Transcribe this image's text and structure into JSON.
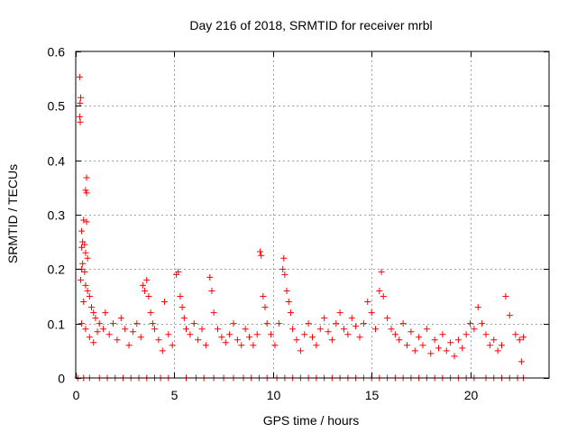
{
  "chart_data": {
    "type": "scatter",
    "title": "Day 216 of 2018, SRMTID for receiver mrbl",
    "xlabel": "GPS time / hours",
    "ylabel": "SRMTID / TECUs",
    "xlim": [
      0,
      24
    ],
    "ylim": [
      0,
      0.6
    ],
    "xticks": [
      0,
      5,
      10,
      15,
      20
    ],
    "xtick_labels": [
      "0",
      "5",
      "10",
      "15",
      "20"
    ],
    "yticks": [
      0,
      0.1,
      0.2,
      0.3,
      0.4,
      0.5,
      0.6
    ],
    "ytick_labels": [
      "0",
      "0.1",
      "0.2",
      "0.3",
      "0.4",
      "0.5",
      "0.6"
    ],
    "grid": true,
    "marker": "+",
    "color": "#ff0000",
    "series": [
      {
        "name": "SRMTID",
        "points": [
          [
            0.2,
            0.553
          ],
          [
            0.25,
            0.515
          ],
          [
            0.22,
            0.505
          ],
          [
            0.2,
            0.48
          ],
          [
            0.23,
            0.47
          ],
          [
            0.55,
            0.368
          ],
          [
            0.5,
            0.345
          ],
          [
            0.55,
            0.34
          ],
          [
            0.4,
            0.29
          ],
          [
            0.55,
            0.287
          ],
          [
            0.3,
            0.27
          ],
          [
            0.35,
            0.25
          ],
          [
            0.45,
            0.245
          ],
          [
            0.3,
            0.24
          ],
          [
            0.5,
            0.23
          ],
          [
            0.6,
            0.22
          ],
          [
            0.35,
            0.21
          ],
          [
            0.3,
            0.2
          ],
          [
            0.45,
            0.195
          ],
          [
            0.25,
            0.18
          ],
          [
            0.5,
            0.17
          ],
          [
            0.6,
            0.16
          ],
          [
            0.7,
            0.15
          ],
          [
            0.4,
            0.14
          ],
          [
            0.8,
            0.13
          ],
          [
            0.9,
            0.12
          ],
          [
            1.0,
            0.11
          ],
          [
            0.3,
            0.1
          ],
          [
            0.5,
            0.09
          ],
          [
            1.1,
            0.085
          ],
          [
            0.7,
            0.075
          ],
          [
            0.9,
            0.065
          ],
          [
            1.2,
            0.1
          ],
          [
            1.4,
            0.09
          ],
          [
            1.5,
            0.12
          ],
          [
            1.7,
            0.08
          ],
          [
            1.9,
            0.1
          ],
          [
            2.1,
            0.07
          ],
          [
            2.3,
            0.11
          ],
          [
            2.5,
            0.09
          ],
          [
            2.7,
            0.06
          ],
          [
            2.9,
            0.085
          ],
          [
            3.1,
            0.1
          ],
          [
            3.3,
            0.075
          ],
          [
            3.4,
            0.17
          ],
          [
            3.5,
            0.16
          ],
          [
            3.6,
            0.18
          ],
          [
            3.7,
            0.15
          ],
          [
            3.8,
            0.12
          ],
          [
            3.9,
            0.1
          ],
          [
            4.0,
            0.09
          ],
          [
            4.2,
            0.07
          ],
          [
            4.4,
            0.05
          ],
          [
            4.5,
            0.14
          ],
          [
            4.7,
            0.08
          ],
          [
            4.9,
            0.06
          ],
          [
            5.1,
            0.19
          ],
          [
            5.2,
            0.195
          ],
          [
            5.3,
            0.15
          ],
          [
            5.4,
            0.13
          ],
          [
            5.5,
            0.11
          ],
          [
            5.6,
            0.09
          ],
          [
            5.8,
            0.08
          ],
          [
            6.0,
            0.1
          ],
          [
            6.2,
            0.07
          ],
          [
            6.4,
            0.09
          ],
          [
            6.6,
            0.06
          ],
          [
            6.8,
            0.185
          ],
          [
            6.9,
            0.16
          ],
          [
            7.0,
            0.12
          ],
          [
            7.2,
            0.09
          ],
          [
            7.4,
            0.075
          ],
          [
            7.6,
            0.065
          ],
          [
            7.8,
            0.08
          ],
          [
            8.0,
            0.1
          ],
          [
            8.2,
            0.07
          ],
          [
            8.4,
            0.06
          ],
          [
            8.6,
            0.09
          ],
          [
            8.8,
            0.075
          ],
          [
            9.0,
            0.06
          ],
          [
            9.2,
            0.08
          ],
          [
            9.35,
            0.232
          ],
          [
            9.4,
            0.225
          ],
          [
            9.5,
            0.15
          ],
          [
            9.6,
            0.13
          ],
          [
            9.7,
            0.1
          ],
          [
            9.9,
            0.08
          ],
          [
            10.1,
            0.06
          ],
          [
            10.3,
            0.1
          ],
          [
            10.5,
            0.2
          ],
          [
            10.55,
            0.22
          ],
          [
            10.6,
            0.19
          ],
          [
            10.7,
            0.16
          ],
          [
            10.8,
            0.14
          ],
          [
            10.9,
            0.12
          ],
          [
            11.0,
            0.09
          ],
          [
            11.2,
            0.07
          ],
          [
            11.4,
            0.05
          ],
          [
            11.6,
            0.08
          ],
          [
            11.8,
            0.1
          ],
          [
            12.0,
            0.075
          ],
          [
            12.2,
            0.06
          ],
          [
            12.4,
            0.09
          ],
          [
            12.6,
            0.11
          ],
          [
            12.8,
            0.085
          ],
          [
            13.0,
            0.07
          ],
          [
            13.2,
            0.1
          ],
          [
            13.4,
            0.12
          ],
          [
            13.6,
            0.09
          ],
          [
            13.8,
            0.08
          ],
          [
            14.0,
            0.11
          ],
          [
            14.2,
            0.095
          ],
          [
            14.4,
            0.075
          ],
          [
            14.6,
            0.1
          ],
          [
            14.8,
            0.14
          ],
          [
            15.0,
            0.12
          ],
          [
            15.2,
            0.09
          ],
          [
            15.4,
            0.16
          ],
          [
            15.5,
            0.195
          ],
          [
            15.6,
            0.15
          ],
          [
            15.8,
            0.11
          ],
          [
            16.0,
            0.09
          ],
          [
            16.2,
            0.08
          ],
          [
            16.4,
            0.07
          ],
          [
            16.6,
            0.1
          ],
          [
            16.8,
            0.06
          ],
          [
            17.0,
            0.085
          ],
          [
            17.2,
            0.05
          ],
          [
            17.4,
            0.075
          ],
          [
            17.6,
            0.06
          ],
          [
            17.8,
            0.09
          ],
          [
            18.0,
            0.045
          ],
          [
            18.2,
            0.07
          ],
          [
            18.4,
            0.055
          ],
          [
            18.6,
            0.08
          ],
          [
            18.8,
            0.05
          ],
          [
            19.0,
            0.065
          ],
          [
            19.2,
            0.04
          ],
          [
            19.4,
            0.07
          ],
          [
            19.6,
            0.055
          ],
          [
            19.8,
            0.08
          ],
          [
            20.0,
            0.1
          ],
          [
            20.2,
            0.09
          ],
          [
            20.4,
            0.13
          ],
          [
            20.6,
            0.1
          ],
          [
            20.8,
            0.08
          ],
          [
            21.0,
            0.06
          ],
          [
            21.2,
            0.07
          ],
          [
            21.4,
            0.05
          ],
          [
            21.6,
            0.06
          ],
          [
            21.8,
            0.15
          ],
          [
            22.0,
            0.115
          ],
          [
            22.3,
            0.08
          ],
          [
            22.5,
            0.07
          ],
          [
            22.6,
            0.03
          ],
          [
            22.7,
            0.075
          ],
          [
            0.1,
            0.0
          ],
          [
            0.4,
            0.0
          ],
          [
            0.7,
            0.0
          ],
          [
            1.2,
            0.0
          ],
          [
            1.6,
            0.0
          ],
          [
            2.0,
            0.0
          ],
          [
            2.4,
            0.0
          ],
          [
            2.8,
            0.0
          ],
          [
            3.2,
            0.0
          ],
          [
            3.6,
            0.0
          ],
          [
            4.0,
            0.0
          ],
          [
            4.3,
            0.0
          ],
          [
            4.7,
            0.0
          ],
          [
            5.6,
            0.0
          ],
          [
            6.1,
            0.0
          ],
          [
            6.5,
            0.0
          ],
          [
            7.0,
            0.0
          ],
          [
            7.5,
            0.0
          ],
          [
            8.0,
            0.0
          ],
          [
            8.5,
            0.0
          ],
          [
            8.9,
            0.0
          ],
          [
            9.3,
            0.0
          ],
          [
            9.7,
            0.0
          ],
          [
            10.2,
            0.0
          ],
          [
            10.6,
            0.0
          ],
          [
            11.0,
            0.0
          ],
          [
            11.4,
            0.0
          ],
          [
            11.8,
            0.0
          ],
          [
            12.2,
            0.0
          ],
          [
            12.6,
            0.0
          ],
          [
            13.0,
            0.0
          ],
          [
            13.4,
            0.0
          ],
          [
            13.8,
            0.0
          ],
          [
            14.2,
            0.0
          ],
          [
            14.6,
            0.0
          ],
          [
            15.0,
            0.0
          ],
          [
            15.4,
            0.0
          ],
          [
            15.8,
            0.0
          ],
          [
            16.2,
            0.0
          ],
          [
            16.6,
            0.0
          ],
          [
            17.0,
            0.0
          ],
          [
            17.4,
            0.0
          ],
          [
            17.8,
            0.0
          ],
          [
            18.2,
            0.0
          ],
          [
            18.6,
            0.0
          ],
          [
            19.0,
            0.0
          ],
          [
            19.4,
            0.0
          ],
          [
            19.8,
            0.0
          ],
          [
            20.2,
            0.0
          ],
          [
            20.8,
            0.0
          ],
          [
            21.2,
            0.0
          ],
          [
            21.6,
            0.0
          ],
          [
            22.0,
            0.0
          ],
          [
            22.4,
            0.0
          ],
          [
            22.7,
            0.0
          ]
        ]
      }
    ]
  }
}
